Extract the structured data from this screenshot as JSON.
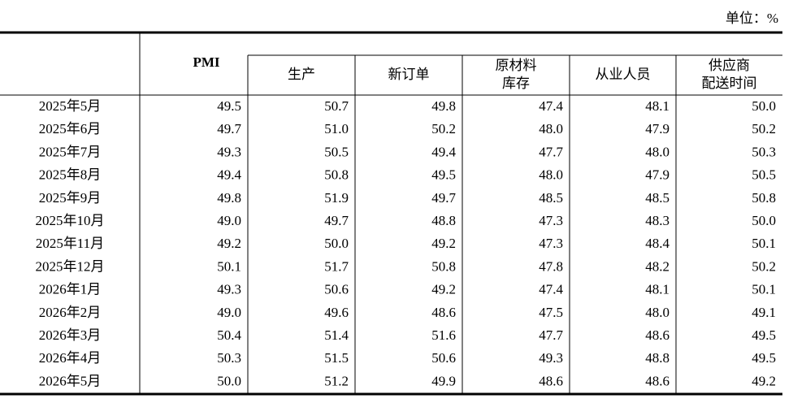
{
  "unit": "单位：%",
  "header": {
    "pmi": "PMI",
    "components": [
      [
        "生产"
      ],
      [
        "新订单"
      ],
      [
        "原材料",
        "库存"
      ],
      [
        "从业人员"
      ],
      [
        "供应商",
        "配送时间"
      ]
    ]
  },
  "rows": [
    {
      "month": "2025年5月",
      "values": [
        "49.5",
        "50.7",
        "49.8",
        "47.4",
        "48.1",
        "50.0"
      ]
    },
    {
      "month": "2025年6月",
      "values": [
        "49.7",
        "51.0",
        "50.2",
        "48.0",
        "47.9",
        "50.2"
      ]
    },
    {
      "month": "2025年7月",
      "values": [
        "49.3",
        "50.5",
        "49.4",
        "47.7",
        "48.0",
        "50.3"
      ]
    },
    {
      "month": "2025年8月",
      "values": [
        "49.4",
        "50.8",
        "49.5",
        "48.0",
        "47.9",
        "50.5"
      ]
    },
    {
      "month": "2025年9月",
      "values": [
        "49.8",
        "51.9",
        "49.7",
        "48.5",
        "48.5",
        "50.8"
      ]
    },
    {
      "month": "2025年10月",
      "values": [
        "49.0",
        "49.7",
        "48.8",
        "47.3",
        "48.3",
        "50.0"
      ]
    },
    {
      "month": "2025年11月",
      "values": [
        "49.2",
        "50.0",
        "49.2",
        "47.3",
        "48.4",
        "50.1"
      ]
    },
    {
      "month": "2025年12月",
      "values": [
        "50.1",
        "51.7",
        "50.8",
        "47.8",
        "48.2",
        "50.2"
      ]
    },
    {
      "month": "2026年1月",
      "values": [
        "49.3",
        "50.6",
        "49.2",
        "47.4",
        "48.1",
        "50.1"
      ]
    },
    {
      "month": "2026年2月",
      "values": [
        "49.0",
        "49.6",
        "48.6",
        "47.5",
        "48.0",
        "49.1"
      ]
    },
    {
      "month": "2026年3月",
      "values": [
        "50.4",
        "51.4",
        "51.6",
        "47.7",
        "48.6",
        "49.5"
      ]
    },
    {
      "month": "2026年4月",
      "values": [
        "50.3",
        "51.5",
        "50.6",
        "49.3",
        "48.8",
        "49.5"
      ]
    },
    {
      "month": "2026年5月",
      "values": [
        "50.0",
        "51.2",
        "49.9",
        "48.6",
        "48.6",
        "49.2"
      ]
    }
  ]
}
